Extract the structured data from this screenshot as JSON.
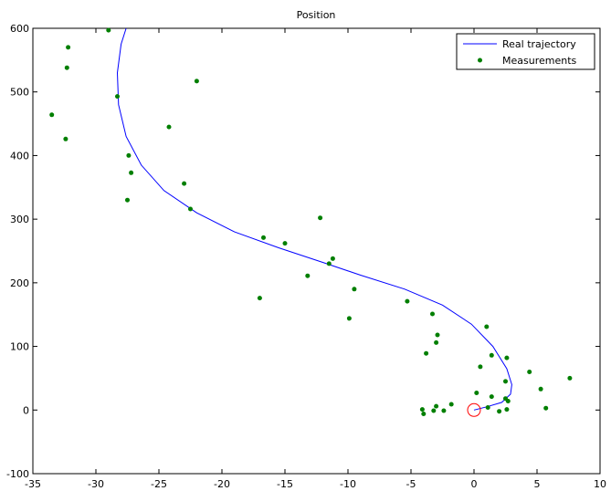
{
  "chart_data": {
    "type": "line",
    "title": "Position",
    "xlabel": "",
    "ylabel": "",
    "xlim": [
      -35,
      10
    ],
    "ylim": [
      -100,
      600
    ],
    "xticks": [
      -35,
      -30,
      -25,
      -20,
      -15,
      -10,
      -5,
      0,
      5,
      10
    ],
    "yticks": [
      -100,
      0,
      100,
      200,
      300,
      400,
      500,
      600
    ],
    "grid": false,
    "legend_position": "top-right",
    "colors": {
      "trajectory": "#0000ff",
      "measurements": "#007f00",
      "start_marker": "#ff0000"
    },
    "series": [
      {
        "name": "Real trajectory",
        "style": "line",
        "x": [
          0,
          1.0,
          2.2,
          2.9,
          3.0,
          2.6,
          1.5,
          -0.2,
          -2.5,
          -5.5,
          -9.0,
          -12.0,
          -15.5,
          -19.0,
          -22.0,
          -24.6,
          -26.4,
          -27.6,
          -28.2,
          -28.3,
          -28.0,
          -27.6
        ],
        "y": [
          0,
          5,
          12,
          25,
          40,
          65,
          100,
          135,
          165,
          190,
          212,
          232,
          255,
          280,
          310,
          345,
          385,
          430,
          480,
          530,
          575,
          600
        ]
      },
      {
        "name": "Measurements",
        "style": "markers",
        "x": [
          -29.0,
          -32.2,
          -32.3,
          -28.3,
          -33.5,
          -32.4,
          -22.0,
          -24.2,
          -27.4,
          -27.2,
          -23.0,
          -22.5,
          -27.5,
          -16.7,
          -15.0,
          -12.2,
          -11.2,
          -11.5,
          -13.2,
          -9.5,
          -17.0,
          -9.9,
          -5.3,
          -3.3,
          -2.9,
          -3.0,
          -3.8,
          1.0,
          1.4,
          2.6,
          0.5,
          4.4,
          7.6,
          2.5,
          5.3,
          0.2,
          1.4,
          2.5,
          2.7,
          1.1,
          -1.8,
          5.7,
          2.0,
          2.6,
          -4.1,
          -2.4,
          -3.0,
          -4.0,
          -3.2
        ],
        "y": [
          597,
          570,
          538,
          493,
          464,
          426,
          517,
          445,
          400,
          373,
          356,
          316,
          330,
          271,
          262,
          302,
          238,
          230,
          211,
          190,
          176,
          144,
          171,
          151,
          118,
          106,
          89,
          131,
          86,
          82,
          68,
          60,
          50,
          45,
          33,
          27,
          21,
          18,
          14,
          4,
          9,
          3,
          -2,
          1,
          1,
          -1,
          6,
          -6,
          -1
        ]
      }
    ],
    "annotations": [
      {
        "type": "circle-marker",
        "x": 0,
        "y": 0,
        "meaning": "start"
      }
    ]
  }
}
